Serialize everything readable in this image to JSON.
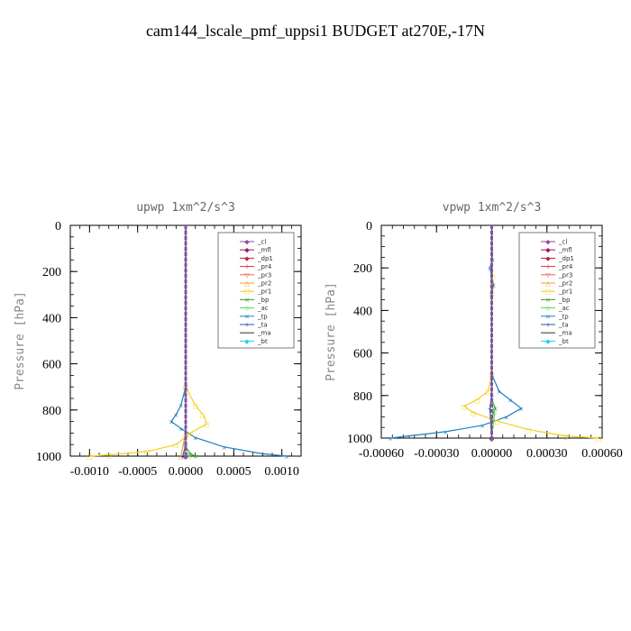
{
  "figure_title": "cam144_lscale_pmf_uppsi1  BUDGET at270E,-17N",
  "legend_entries": [
    "_cl",
    "_mfl",
    "_dp1",
    "_pr4",
    "_pr3",
    "_pr2",
    "_pr1",
    "_bp",
    "_ac",
    "_tp",
    "_ta",
    "_ma",
    "_bt"
  ],
  "colors": {
    "_cl": "#8e4ea0",
    "_mfl": "#a01060",
    "_dp1": "#c02050",
    "_pr4": "#e03040",
    "_pr3": "#f06060",
    "_pr2": "#f0a020",
    "_pr1": "#f0d020",
    "_bp": "#30a030",
    "_ac": "#60d060",
    "_tp": "#2080c0",
    "_ta": "#3050b0",
    "_ma": "#303030",
    "_bt": "#20d0f0"
  },
  "chart_data": [
    {
      "type": "line",
      "title": "upwp   1xm^2/s^3",
      "ylabel": "Pressure [hPa]",
      "xlim": [
        -0.0012,
        0.0012
      ],
      "ylim": [
        1000,
        0
      ],
      "y_reversed": true,
      "xticks": [
        -0.001,
        -0.0005,
        0.0,
        0.0005,
        0.001
      ],
      "xtick_labels": [
        "-0.0010",
        "-0.0005",
        "0.0000",
        "0.0005",
        "0.0010"
      ],
      "yticks": [
        0,
        200,
        400,
        600,
        800,
        1000
      ],
      "ytick_labels": [
        "0",
        "200",
        "400",
        "600",
        "800",
        "1000"
      ],
      "legend_position": "top-right",
      "series": [
        {
          "name": "_tp",
          "y": [
            0,
            700,
            780,
            820,
            850,
            880,
            920,
            960,
            990,
            1000
          ],
          "x": [
            0,
            0,
            -5e-05,
            -0.0001,
            -0.00015,
            -5e-05,
            0.0001,
            0.0004,
            0.0008,
            0.00105
          ]
        },
        {
          "name": "_pr1",
          "y": [
            0,
            700,
            780,
            820,
            860,
            900,
            950,
            980,
            995,
            1000
          ],
          "x": [
            0,
            0,
            0.0001,
            0.00018,
            0.00022,
            5e-05,
            -0.0001,
            -0.0004,
            -0.0008,
            -0.001
          ]
        },
        {
          "name": "_pr2",
          "y": [
            0,
            900,
            1000
          ],
          "x": [
            0,
            0,
            -5e-05
          ]
        },
        {
          "name": "_bp",
          "y": [
            0,
            960,
            990,
            1000
          ],
          "x": [
            0,
            0,
            5e-05,
            0.0001
          ]
        },
        {
          "name": "_ac",
          "y": [
            0,
            980,
            1000
          ],
          "x": [
            0,
            0,
            4e-05
          ]
        },
        {
          "name": "_ta",
          "y": [
            0,
            950,
            1000
          ],
          "x": [
            0,
            0,
            -3e-05
          ]
        },
        {
          "name": "_dp1",
          "y": [
            0,
            1000
          ],
          "x": [
            0,
            0
          ]
        },
        {
          "name": "_mfl",
          "y": [
            0,
            1000
          ],
          "x": [
            0,
            0
          ]
        },
        {
          "name": "_cl",
          "y": [
            0,
            1000
          ],
          "x": [
            0,
            0
          ]
        }
      ]
    },
    {
      "type": "line",
      "title": "vpwp   1xm^2/s^3",
      "ylabel": "Pressure [hPa]",
      "xlim": [
        -0.0006,
        0.0006
      ],
      "ylim": [
        1000,
        0
      ],
      "y_reversed": true,
      "xticks": [
        -0.0006,
        -0.0003,
        0.0,
        0.0003,
        0.0006
      ],
      "xtick_labels": [
        "-0.00060",
        "-0.00030",
        "0.00000",
        "0.00030",
        "0.00060"
      ],
      "yticks": [
        0,
        200,
        400,
        600,
        800,
        1000
      ],
      "ytick_labels": [
        "0",
        "200",
        "400",
        "600",
        "800",
        "1000"
      ],
      "legend_position": "top-right",
      "series": [
        {
          "name": "_tp",
          "y": [
            0,
            160,
            200,
            280,
            320,
            700,
            780,
            820,
            860,
            900,
            940,
            970,
            990,
            1000
          ],
          "x": [
            0,
            5e-06,
            -1e-05,
            1e-05,
            0,
            0,
            4e-05,
            0.0001,
            0.00016,
            8e-05,
            -5e-05,
            -0.00025,
            -0.00045,
            -0.00055
          ]
        },
        {
          "name": "_pr1",
          "y": [
            0,
            240,
            280,
            320,
            700,
            780,
            820,
            850,
            880,
            920,
            960,
            990,
            1000
          ],
          "x": [
            0,
            5e-06,
            3e-06,
            0,
            0,
            -2e-05,
            -8e-05,
            -0.00015,
            -0.0001,
            3e-05,
            0.0002,
            0.0004,
            0.00058
          ]
        },
        {
          "name": "_bp",
          "y": [
            0,
            820,
            860,
            900,
            1000
          ],
          "x": [
            0,
            0,
            2e-05,
            0,
            0
          ]
        },
        {
          "name": "_ac",
          "y": [
            0,
            840,
            880,
            1000
          ],
          "x": [
            0,
            0,
            1.5e-05,
            0
          ]
        },
        {
          "name": "_ta",
          "y": [
            0,
            800,
            860,
            1000
          ],
          "x": [
            0,
            0,
            -1e-05,
            0
          ]
        },
        {
          "name": "_dp1",
          "y": [
            0,
            1000
          ],
          "x": [
            0,
            0
          ]
        },
        {
          "name": "_mfl",
          "y": [
            0,
            1000
          ],
          "x": [
            0,
            0
          ]
        },
        {
          "name": "_cl",
          "y": [
            0,
            1000
          ],
          "x": [
            0,
            0
          ]
        }
      ]
    }
  ]
}
